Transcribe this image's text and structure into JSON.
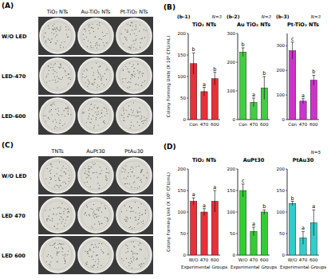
{
  "panel_labels": [
    "(A)",
    "(B)",
    "(C)",
    "(D)"
  ],
  "photo_panels": [
    {
      "columns": [
        "TiO₂ NTs",
        "Au-TiO₂ NTs",
        "Pt-TiO₂ NTs"
      ],
      "rows": [
        "W/O LED",
        "LED-470",
        "LED-600"
      ]
    },
    {
      "columns": [
        "TNTs",
        "AuPt30",
        "PtAu30"
      ],
      "rows": [
        "W/O LED",
        "LED 470",
        "LED 600"
      ]
    }
  ],
  "chart_data": [
    {
      "type": "bar",
      "subtitle": "(b-1)",
      "title": "TiO₂ NTs",
      "y_label": "Colony Forming Units (X 10⁵ CFU/mL)",
      "categories": [
        "Con",
        "470",
        "600"
      ],
      "values": [
        130,
        65,
        95
      ],
      "errors": [
        25,
        10,
        15
      ],
      "significance": [
        "b",
        "a",
        "b"
      ],
      "annotations": [
        "N=3"
      ],
      "color": "#e8303a",
      "ylim": [
        0,
        200
      ],
      "yticks": [
        0,
        50,
        100,
        150,
        200
      ]
    },
    {
      "type": "bar",
      "subtitle": "(b-2)",
      "title": "Au TiO₂ NTs",
      "categories": [
        "Con",
        "470",
        "600"
      ],
      "values": [
        235,
        60,
        110
      ],
      "errors": [
        15,
        15,
        40
      ],
      "significance": [
        "b",
        "a",
        "b"
      ],
      "annotations": [
        "N=3"
      ],
      "color": "#44cc44",
      "ylim": [
        0,
        300
      ],
      "yticks": [
        0,
        100,
        200,
        300
      ]
    },
    {
      "type": "bar",
      "subtitle": "(b-3)",
      "title": "Pt-TiO₂ NTs",
      "categories": [
        "Con",
        "470",
        "600"
      ],
      "values": [
        280,
        75,
        160
      ],
      "errors": [
        35,
        10,
        20
      ],
      "significance": [
        "c",
        "a",
        "b"
      ],
      "annotations": [
        "N=3"
      ],
      "color": "#cc33cc",
      "ylim": [
        0,
        350
      ],
      "yticks": [
        0,
        100,
        200,
        300
      ]
    },
    {
      "type": "bar",
      "title": "TiO₂ NTs",
      "y_label": "Colony Forming Unit (X 10⁵ CFU/mL)",
      "x_label": "Experimental Groups",
      "categories": [
        "W/O",
        "470",
        "600"
      ],
      "values": [
        125,
        100,
        125
      ],
      "errors": [
        8,
        8,
        25
      ],
      "significance": [
        "a",
        "a",
        "a"
      ],
      "color": "#e8303a",
      "ylim": [
        0,
        200
      ],
      "yticks": [
        0,
        50,
        100,
        150,
        200
      ]
    },
    {
      "type": "bar",
      "title": "AuPt30",
      "x_label": "Experimental Groups",
      "categories": [
        "W/O",
        "470",
        "600"
      ],
      "values": [
        150,
        55,
        100
      ],
      "errors": [
        15,
        10,
        5
      ],
      "significance": [
        "c",
        "a",
        "b"
      ],
      "color": "#33cc33",
      "ylim": [
        0,
        200
      ],
      "yticks": [
        0,
        50,
        100,
        150,
        200
      ]
    },
    {
      "type": "bar",
      "title": "PtAu30",
      "x_label": "Experimental Groups",
      "categories": [
        "W/O",
        "470",
        "600"
      ],
      "values": [
        120,
        40,
        75
      ],
      "errors": [
        5,
        15,
        30
      ],
      "significance": [
        "b",
        "a",
        "a"
      ],
      "annotations": [
        "N=5"
      ],
      "color": "#33cccc",
      "ylim": [
        0,
        200
      ],
      "yticks": [
        0,
        50,
        100,
        150,
        200
      ]
    }
  ]
}
